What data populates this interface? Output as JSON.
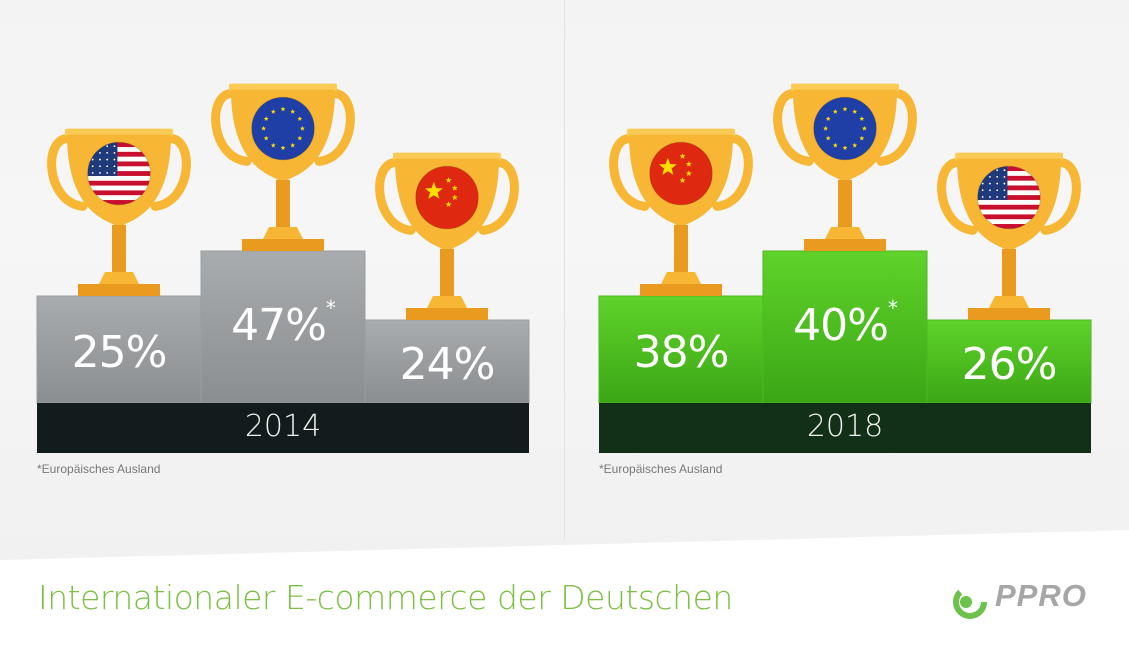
{
  "title": "Internationaler E-commerce der Deutschen",
  "logo": {
    "text": "PPRO",
    "brand_color": "#6cc24a"
  },
  "colors": {
    "gray_block": "#9ea1a3",
    "green_block": "#4ccb1e",
    "gray_base": "#121c1c",
    "green_base": "#123018",
    "title": "#7bc043"
  },
  "chart_data": [
    {
      "type": "bar",
      "category": "2014",
      "year_label": "2014",
      "footnote": "*Europäisches Ausland",
      "series": [
        {
          "flag": "usa-flag-icon",
          "value": 25,
          "label": "25%",
          "asterisk": ""
        },
        {
          "flag": "eu-flag-icon",
          "value": 47,
          "label": "47%",
          "asterisk": "*"
        },
        {
          "flag": "china-flag-icon",
          "value": 24,
          "label": "24%",
          "asterisk": ""
        }
      ]
    },
    {
      "type": "bar",
      "category": "2018",
      "year_label": "2018",
      "footnote": "*Europäisches Ausland",
      "series": [
        {
          "flag": "china-flag-icon",
          "value": 38,
          "label": "38%",
          "asterisk": ""
        },
        {
          "flag": "eu-flag-icon",
          "value": 40,
          "label": "40%",
          "asterisk": "*"
        },
        {
          "flag": "usa-flag-icon",
          "value": 26,
          "label": "26%",
          "asterisk": ""
        }
      ]
    }
  ]
}
